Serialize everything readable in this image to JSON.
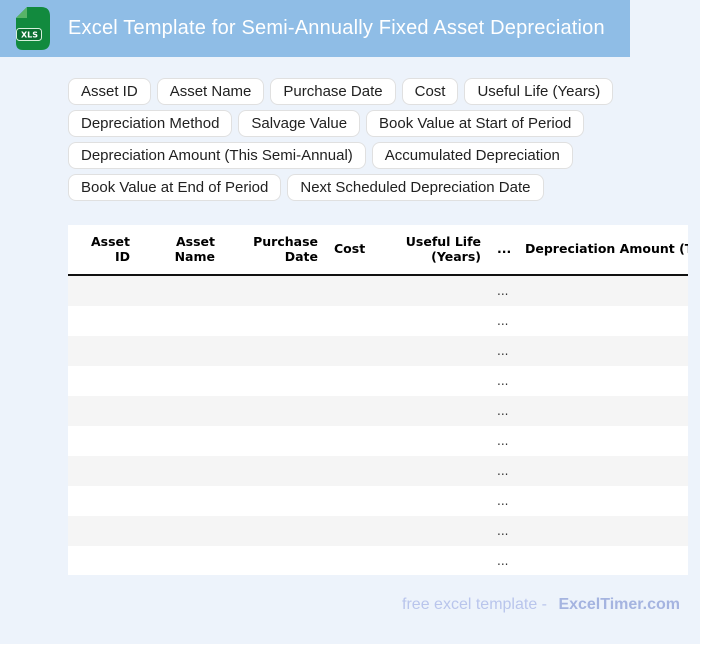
{
  "header": {
    "title": "Excel Template for Semi-Annually Fixed Asset Depreciation",
    "icon_label": "XLS"
  },
  "chips": {
    "rows": [
      [
        "Asset ID",
        "Asset Name",
        "Purchase Date",
        "Cost",
        "Useful Life (Years)"
      ],
      [
        "Depreciation Method",
        "Salvage Value",
        "Book Value at Start of Period"
      ],
      [
        "Depreciation Amount (This Semi-Annual)",
        "Accumulated Depreciation"
      ],
      [
        "Book Value at End of Period",
        "Next Scheduled Depreciation Date"
      ]
    ]
  },
  "table": {
    "headers": [
      "Asset\nID",
      "Asset\nName",
      "Purchase\nDate",
      "Cost",
      "Useful Life\n(Years)",
      "...",
      "Depreciation Amount (This Semi-Annual)"
    ],
    "rows": [
      [
        "",
        "",
        "",
        "",
        "",
        "...",
        ""
      ],
      [
        "",
        "",
        "",
        "",
        "",
        "...",
        ""
      ],
      [
        "",
        "",
        "",
        "",
        "",
        "...",
        ""
      ],
      [
        "",
        "",
        "",
        "",
        "",
        "...",
        ""
      ],
      [
        "",
        "",
        "",
        "",
        "",
        "...",
        ""
      ],
      [
        "",
        "",
        "",
        "",
        "",
        "...",
        ""
      ],
      [
        "",
        "",
        "",
        "",
        "",
        "...",
        ""
      ],
      [
        "",
        "",
        "",
        "",
        "",
        "...",
        ""
      ],
      [
        "",
        "",
        "",
        "",
        "",
        "...",
        ""
      ],
      [
        "",
        "",
        "",
        "",
        "",
        "...",
        ""
      ]
    ]
  },
  "footer": {
    "prefix": "free excel template -",
    "brand": "ExcelTimer.com"
  },
  "colors": {
    "titlebar": "#8fbde6",
    "page_bg": "#edf3fb",
    "row_alt": "#f5f5f5",
    "icon_green": "#128a3e",
    "icon_badge_green": "#0b6e31",
    "icon_fold_green": "#58b368"
  }
}
